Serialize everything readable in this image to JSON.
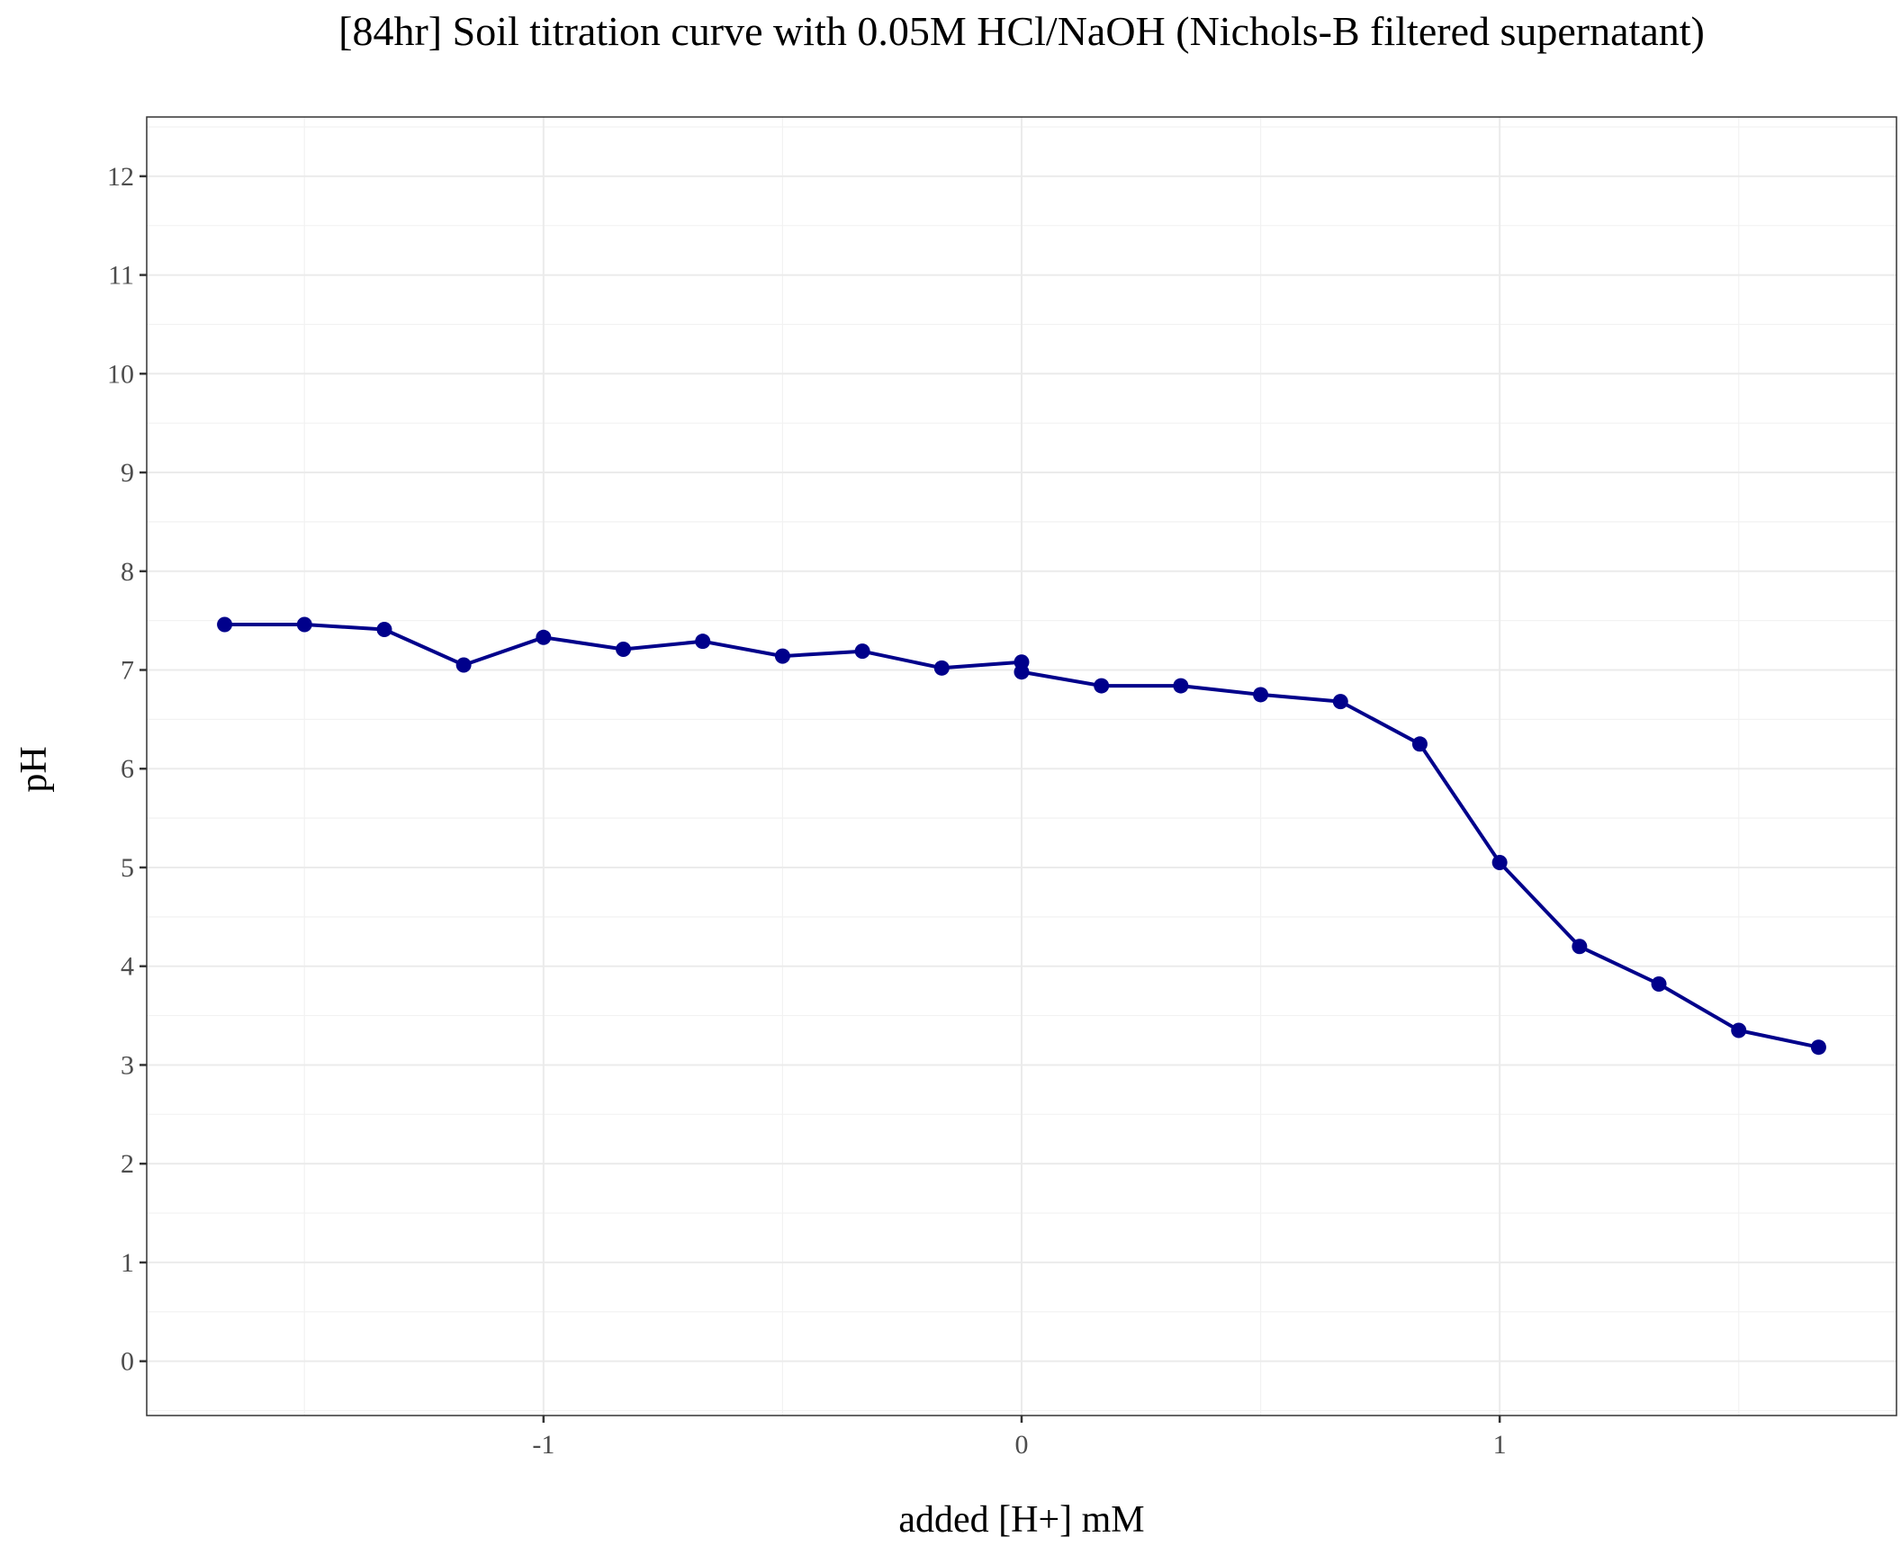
{
  "chart_data": {
    "type": "line",
    "title": "[84hr] Soil titration curve with 0.05M HCl/NaOH (Nichols-B filtered supernatant)",
    "xlabel": "added [H+] mM",
    "ylabel": "pH",
    "xlim": [
      -1.83,
      1.83
    ],
    "ylim": [
      -0.55,
      12.6
    ],
    "x_ticks": [
      -1,
      0,
      1
    ],
    "x_tick_labels": [
      "-1",
      "0",
      "1"
    ],
    "y_ticks": [
      0,
      1,
      2,
      3,
      4,
      5,
      6,
      7,
      8,
      9,
      10,
      11,
      12
    ],
    "y_tick_labels": [
      "0",
      "1",
      "2",
      "3",
      "4",
      "5",
      "6",
      "7",
      "8",
      "9",
      "10",
      "11",
      "12"
    ],
    "grid": true,
    "legend": "none",
    "series": [
      {
        "color": "#00008b",
        "x": [
          -1.667,
          -1.5,
          -1.333,
          -1.167,
          -1.0,
          -0.833,
          -0.667,
          -0.5,
          -0.333,
          -0.167,
          0.0,
          0.0,
          0.167,
          0.333,
          0.5,
          0.667,
          0.833,
          1.0,
          1.167,
          1.333,
          1.5,
          1.667
        ],
        "y": [
          7.46,
          7.46,
          7.41,
          7.05,
          7.33,
          7.21,
          7.29,
          7.14,
          7.19,
          7.02,
          7.08,
          6.98,
          6.84,
          6.84,
          6.75,
          6.68,
          6.25,
          5.05,
          4.2,
          3.82,
          3.35,
          3.18
        ]
      }
    ]
  }
}
